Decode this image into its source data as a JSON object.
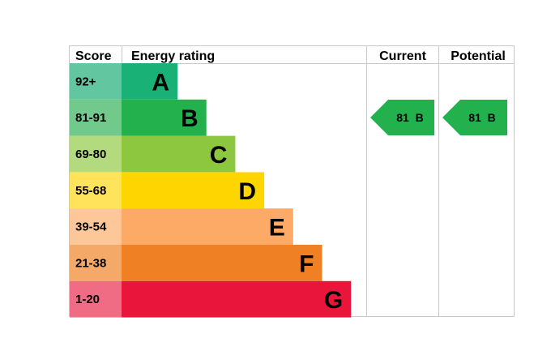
{
  "chart_data": {
    "type": "bar",
    "title": "",
    "headers": {
      "score": "Score",
      "rating": "Energy rating",
      "current": "Current",
      "potential": "Potential"
    },
    "bands": [
      {
        "range": "92+",
        "letter": "A",
        "color": "#19b176",
        "score_color": "#62c6a0",
        "level": 1
      },
      {
        "range": "81-91",
        "letter": "B",
        "color": "#22b14c",
        "score_color": "#72c98c",
        "level": 2
      },
      {
        "range": "69-80",
        "letter": "C",
        "color": "#8dc63f",
        "score_color": "#b4da7f",
        "level": 3
      },
      {
        "range": "55-68",
        "letter": "D",
        "color": "#ffd500",
        "score_color": "#ffe35a",
        "level": 4
      },
      {
        "range": "39-54",
        "letter": "E",
        "color": "#fcaa65",
        "score_color": "#fdc799",
        "level": 5
      },
      {
        "range": "21-38",
        "letter": "F",
        "color": "#ef8023",
        "score_color": "#f4a969",
        "level": 6
      },
      {
        "range": "1-20",
        "letter": "G",
        "color": "#e9153b",
        "score_color": "#f06b84",
        "level": 7
      }
    ],
    "current": {
      "value": 81,
      "letter": "B",
      "label": "81  B",
      "color": "#22b14c"
    },
    "potential": {
      "value": 81,
      "letter": "B",
      "label": "81  B",
      "color": "#22b14c"
    }
  }
}
